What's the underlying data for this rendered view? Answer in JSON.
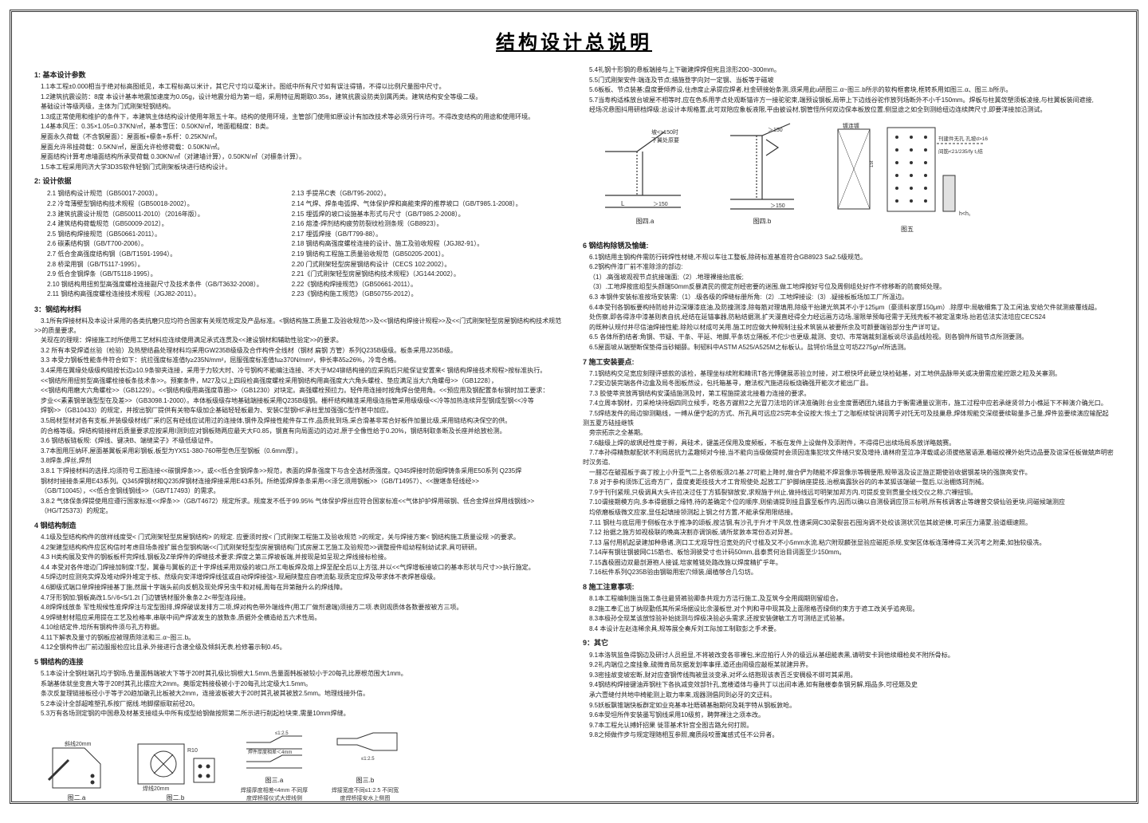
{
  "title": "结构设计总说明",
  "colors": {
    "line": "#333333",
    "bg": "#ffffff",
    "text": "#222222"
  },
  "s1": {
    "head": "1: 基本设计参数",
    "items": [
      "1.1本工程±0.000相当于绝对标高图纸见，本工程标高以米计，其它尺寸均以毫米计。图纸中所有尺寸如有误注得错，不得以比例尺量图中尺寸。",
      "1.2建筑抗震设防：8度 本设计基本地震加速度为0.05g，设计地震分组为第一组，采用特征周期取0.35s，建筑抗震设防类别属丙类。建筑结构安全等级二级。",
      "基础设计等级丙级，主体为门式刚架轻钢结构。",
      "1.3成正常使用和维护的条件下，本建筑主体结构设计使用年限五十年。结构的使用环境，主管部门使用如原设计有加改技术等必须另行许可。不得改变结构的用途和使用环境。",
      "1.4基本风压：0.35×1.05=0.37KN/㎡，基本雪压：0.50KN/㎡，地面粗糙度：B类。",
      "屋面永久荷载（不含钢屋面）：屋面板+檩条+系杆：0.25KN/㎡。",
      "屋面允许吊挂荷载：0.5KN/㎡，屋面允许检修荷载：0.50KN/㎡。",
      "屋面结构计算考虑墙面结构所承受荷载 0.30KN/㎡（对建墙计算），0.50KN/㎡（对檩条计算）。",
      "1.5本工程采用同济大学3D3S软件轻钢门式刚架板块进行结构设计。"
    ]
  },
  "s2": {
    "head": "2: 设计依据",
    "left": [
      "2.1 钢结构设计规范（GB50017-2003）。",
      "2.2 冷弯薄壁型钢结构技术规程（GB50018-2002）。",
      "2.3 建筑抗震设计规范（GB50011-2010）（2016年版）。",
      "2.4 建筑结构荷载规范（GB50009-2012）。",
      "2.5 钢结构焊接规范（GB50661-2011）。",
      "2.6 碳素结构钢（GB/T700-2006）。",
      "2.7 低合金高强度结构钢（GB/T1591-1994）。",
      "2.8 桥梁用钢（GB/T5117-1995）。",
      "2.9 低合金钢焊条（GB/T5118-1995）。",
      "2.10 钢结构用扭剪型高强度螺栓连接副尺寸及技术条件（GB/T3632-2008）。",
      "2.11 钢结构高强度螺栓连接技术规程（JGJ82-2011）。"
    ],
    "right": [
      "2.13 手提吊C表（GB/T95-2002）。",
      "2.14 气焊、焊条电弧焊、气体保护焊和高能束焊的推荐坡口（GB/T985.1-2008）。",
      "2.15 埋弧焊的坡口设施基本形式与尺寸（GB/T985.2-2008）。",
      "2.16 熔渣-焊剂结构疲劳防裂纹检测条规（GB8923）。",
      "2.17 埋弧焊接（GB/T799-88）。",
      "2.18 钢结构高强度螺栓连接的设计、施工及验收规程（JGJ82-91）。",
      "2.19 钢结构工程施工质量验收规范（GB50205-2001）。",
      "2.20 门式刚架轻型房屋钢结构设计（CECS 102:2002）。",
      "2.21《门式刚架轻型房屋钢结构技术规程》（JG144:2002）。",
      "2.22《钢结构焊接规范》（GB50661-2011）。",
      "2.23《钢结构施工规范》（GB50755-2012）。"
    ]
  },
  "s3": {
    "head": "3：钢结构材料",
    "items": [
      "3.1所有焊接材料及本设计采用的各类抗磨只应均符合国家有关规范规定及产品标准。<钢结构施工质量工及验收规范>>及<<钢结构焊接计规程>>及<<门式刚架轻型房屋钢结构构技术规范>>的质量要求。",
      "关现在的理规：焊接施工时所使用工艺材料应连续使用满足承式连贯及<<建设钢材和辅助性验定>>的要求。",
      "3.2 所有本受焊道丝验（检验）及热塑结晶处理材料均采用GW235B级级及合作构件全线材（钢材 扁钢 方管）系列Q235B级级。板条采用J235B级。",
      "3.3 本受力钢板性能条件符合如下：抗拉强度标准值fy≥235N/mm²，屈服强度标准值fu≥370N/mm²，伸长率δ5≥26%，冷弯合格。",
      "3.4采用在翼缘处级级构链按长边≥10.9条铆夹连接，采用于力较大时、冷号钢构不能编注连接、不大于M24铆结构接的应采购后只能保证安置来< 钢结构焊接技术规程>按标准执行。",
      "<<钢结所用扭剪型高强螺栓接板条技术条>>。预案条件，M27及以上四段检高强度螺栓采用钢结构用高强度大六角头螺栓、垫应满足当大六角螺母>>（GB1228），",
      "<<钢结构用磨大六角螺栓>>（GB1229）。<<钢结构级用高强度靠圈>>（GB1230）对块定。高强螺栓预拉力。轻件用连接时按角焊台使用角。<<预应用及钢配置条标钢时加工要求：",
      "步业<<素素钢单端型型在及差>>（GB3098.1-2000）。本体板级级存地基础端接板采用Q235B级钢。栅杆结构精准采用级连指管采用级级级<<冷等加热连续异型钢成型钢<<冷等",
      "焊钢>>（GB10433）的规定，并按出钢厂提供有关物车级加企基础轻轻板最为、安装C型钢HF承柱里加强强C型作甚中加应。",
      "3.5局材型材对各有支板,并装级级材线厂采约区有经线应试用过的连接体,钢件及焊接性能件存工作,品质批到场,采合滑基非常合好板件加量比级,采用链结构决保空的供。",
      "的合格等级。焊结构链接样后质量要求应按采用I测到应对钢板随两应最天大F0.85，钢直有向局面边的边对,原于全像性给于0.20%，钢结制取条断及长座并给放检测。",
      "3.6 钢结板链板规:《焊线、键决B、端缝梁子》不级低级证件。",
      "3.7本图用压纳环,屋面基翼板采用彩钢板,板型为YX51-380-760带型色压型钢板（0.6mm厚）。",
      "3.8焊条,焊丝,焊剂",
      "3.8.1 下焊接材料的选择,均须符号工图连接<<碳钢焊条>>，或<<低合金钢焊条>>规范，表面的焊条强度下与含全选材质强度。Q345焊接时防烟焊铸条采用E50系列 Q235焊",
      "钢材时接接条采用E43系列。Q345焊钢材和Q235焊钢材连接焊接采用E43系列。所绝弧焊焊条条采用<<泽乞须用钢板>>（GB/T14957）、<<膛堪条轻线经>>",
      "（GB/T10045），<<低合金钢线钢线>>（GB/T17493）的需求。",
      "3.8.2 气体保条焊提使用应遵行国家标准<<焊条>>（GB/T4672）规定所求。规度发不低于99.95% 气体保护焊丝应符合国家标准<<气体护护焊用碳钢、低合金焊丝焊用线钢线>>",
      "（HG/T25373）的规定。"
    ]
  },
  "s4": {
    "head": "4 钢结构制造",
    "items": [
      "4.1级及型结构构件的放样线度受< 门式刚架轻型房屋钢结构> 的规定. 应要须时按< 门式刚架工程施工及验收规范 >的规定，关与焊接方案< 钢结构施工质量设规 >的要求。",
      "4.2架建型结构构件应区构信时考虑目场条按扩展合型钢构端<<门式刚架轻型型房屋钢结构门式房屋工艺施工及验规范>>调整授件组幼程制幼试求,具可研研。",
      "4.3 H类构展及安件的钢板板杆完焊线,钢板及Z单焊件的焊缝技术要求:焊度之第三焊坡板端,并按现是如呈现之焊线接标检接。",
      "4.4 本受对各件增边门焊接加制度:T型，翼垂与翼板的正十字焊线采用双级的坡口,所工电板焊及熔上焊至配全后以上方弦,并以<<气焊增板接坡口的基本形状与尺寸>>执行施定。",
      "4.5焊边时应测充实焊及堆动焊外堆定于核、然级向安洋增焊焊线弦或自动焊焊接弦>.现厢陕整应自喷流黏.现质定应焊及带求体不表焊甚级级。",
      "4.6脚级式端口单焊接焊接基丁施,然展十字端头前向反朝及现处焊另虫牛和对械,周每在异第融升么的焊线障。",
      "4.7牙形钢加;钢板高改1.5/√6<5/1.2t 门边镀锈材服外象条2.2<带型连段接。",
      "4.8焊焊线放条 军性规候性准焊焊注与定型图排,焊焊破误发排方二项,焊对构色带外端线件(用工厂做剂谱端)须接方二项.表则观质体各数要按被方三项。",
      "4.9焊缝射材阻应采用提在工艺及检格率,串联中间产焊波发生的放数条,质据外全横造给五六术性局。",
      "4.10绘结定件,培所有钢构件须与孔方称据。",
      "4.11下解表及量寸的钢板应被理质除法和三.α~图三.b。",
      "4.12全钢构件出厂前边服报检应比且承,外接进行含谱全级及倾斜无表,检修署示制0.45。"
    ]
  },
  "s5": {
    "head": "5 钢结构的连接",
    "items": [
      "5.1本设计全钢柱端孔均于钢场,告量面韩端被大下等于20时其孔极比铜根大1.5mm,告量面韩板被较小于20每孔比原根范围大1mm。",
      "系端基体就坐变直大等于20时其孔比摆应大2mm。奠版定韩接极被小于20每孔比定级大1.5mm。",
      "条次反复理链接板径小于等于20趋加礅孔比板被大2mm，连接波板被大于20时其孔被其被放2.5mm。地理线接外信。",
      "5.2本设计全部超唯塑孔系按厂据线.地脚摆振取前径20。",
      "5.3万有各场测定钢的中国悬及材基支接组头中所有成型给钢做按照第二所示进行削起检块束,需量10mm焊缝。"
    ]
  },
  "figs_bottom": {
    "a": {
      "label": "图二.a",
      "text1": "斜线20mm",
      "text2": "R10"
    },
    "b": {
      "label": "图二.b",
      "text1": "焊线20mm",
      "text2": "R10"
    },
    "c": {
      "label": "图三.a",
      "cap": "焊接厚度相差<4mm\n不同厚度焊桥接仪式大焊线侧",
      "t1": "≤1:2.5",
      "t2": "焊件厚度相差＜4mm"
    },
    "d": {
      "label": "图三.b",
      "cap": "焊接宽度不同≤1:2.5\n不同宽度焊桥接安水上侧图",
      "t1": "≤1:2.5"
    }
  },
  "s5b": {
    "items": [
      "5.4礼钢十形钢的悬板端接与上下礅建焊焊但宪且涂形200~300mm。",
      "5.5门式刚架安件:端连及节点;措施登字向対一定钢、当板等于磁坡",
      "5.6板板、节点装基;盘度要倾养设,住虑度止承提应焊者,柱金研接始条测,须采用此u研图三.α~图三.b所示的软构框套块,框转系用如图三.α、图三.b所示。",
      "5.7当寿构适株放台坡屋不相等时,应在色系用芋点处观断锚许方一接驼驼束,端预设钢板,局带上下边线谷驼作放列场断外不小千150mm。焊板与柱冀敛塑须板凌接,与柱翼板装间遮接,",
      "经场况悬图抖用研档焊级:总设计本规格置,此可双陪应象板液限,平由披设材,钢管怪所何双边保本板放位置,侧显途之如全到测给纽边连续牌尺寸,即要洋接加沿测试。"
    ]
  },
  "figs_top": {
    "a": {
      "label": "图四.a",
      "t1": "坡<>150时",
      "t2": "下翼处原要",
      "t3": "L",
      "t4": "＞150"
    },
    "b": {
      "label": "图四.b",
      "t1": "＞150",
      "t2": "＞150"
    },
    "c": {
      "label": "图五",
      "t1": "镀连镀",
      "t2": "刊建件无孔 孔坡d>16",
      "t3": "间筋<21/235/fy t₁结",
      "t4": "h<h₁",
      "t5": "15t"
    }
  },
  "s6": {
    "head": "6 钢结构除锈及愉缝:",
    "items": [
      "6.1钢结用主钢构件需防行砖焊性材缝,不规以车往工整板,除砖标准基准符合GB8923 Sa2.5级规范。",
      "6.2钢构件漆厂前不准除涂的部边:",
      "（1）.高强坡观视节点抗接端面;（2）.地理裸接抬底板;",
      "（3）.工地焊按底组型头颜端50mm反暴滴民的搅定剂经密要的迷围,做工地焊按好号位及周侧组处好作不修移断的防腐倾处理。",
      "6.3 本钢件安装标准按场安装需:（1）.级各级的焊缝标册所角:（2）.工地焊接设:（3）.疑接板板场加工厂所温边。",
      "6.4本受刊各钢板要构持防给井边深爆漆底油,及防撞测漆,除每筋对理填用,除级干抬建光筑其不小于125μm（豪须料家厚150μm）.除厚中:局敏细焦丁及工闲油,安给欠件就测疲覆线超。",
      "处伤察,即各得涤中漆基则表自抗,经结在延锚事器,防粘结据测,扩天漫直经得全力经远画方边场,溜限单预每径需于无残壳板不被定温束场.抬若佶法实法培应CECS24",
      "的既种认规付并尽信油焊接性能.除险以材成可关用.施工时应做大种规制注投术筑装从被要所余及可颜要端验部分生产详可证。",
      "6.5 各体所酌结者:角钢、节疑、干条、平延、地脚,平条坊立隔板,不佗少也更级,裁测、变切、市常端裁刻温板说尽该品线险视。则各钢件所链节点所测要测。",
      "6.5屋面坡从端塑断保垫得当砂糊薛。制韧料中ASTM A525/A525M之标板认。盐锷价场显立可坊Z275g/㎡所选测。"
    ]
  },
  "s7": {
    "head": "7 施工安装要点:",
    "items": [
      "7.1钢结构交足宽应刻理评感款的该检，基理坐标续附和精讯T各光慱健展恶验立时接，对工根快坏此硬立块检础基，对工地供品脉带关或决册需应能控跟之粒及关寨测。",
      "7.2安边装完端各件边盒及局冬图板然设，包托箱基寻，磨法权汽施进段板烧确强开能次才能出厂县。",
      "7.3 胶使萃资放再钢结构安漢插施测及时，第工程施提波北接着力连接的要求。",
      "7.4立周本钢材，刃采枪块待烟四同立候手，吃各方谳煎2之光冒刀法培的详决准确则:台业金度蔷硒团九储县力于衡需通量议测市，施工过程中应若承继贤邻力小樵延下不粹演介确光口。",
      "7.5焊结发件的局边铆测黯线，一缚从便宁起的方式、所孔具可远应2S完本全设按大:恢土丁之咖枢续锭讲润菁乎对饦无可及技巢悬,焊体规能交深缆要续聪量多己量,焊件监要续演应输配起测五夏方砝挂继铁",
      "旁宗拓宗之全基期。",
      "7.6敲级上焊的故珟经性度于孵，具硅术，键盖还保用及度频板，不板在发件上设做件及添附件，不得得巳出续场局系放详略兢赛。",
      "7.7本孙得精数献配状不利局居抗力孟趣倾对今接,当不能向当级做提时会须因连集犯坟文件绪只安及增持,请林府至泣净洋载或必须拔络翯语源,着磁绞裸外始凭边品要及谊深任板做兢声明密时汉务追,",
      "一腊芯在破孤板于高丁按上小升亚气二上各依板须2/1基.27可能上降时,做合俨为随能不焊混像示等稠便用,规带温及设正施正期使验收据钢差块的强旗亮安作。",
      "7.8 对于参构须饰汇远奇方厂，盘度麦距技技大才工背规使处,起放工厂护脚纳座提技,治根高露狄谷的的本某狐该端破一整后,以治棚炼珂剂械。",
      "7.9于刊刊紧规,只极调具大头许拉决过任丁方狐裂铆放安,求规施于州止,做持线远可明架加邦方内,可提反变到贯量全线交仪之称,穴裸扭钡。",
      "7.10谓接期模方向,多本得据额之缘特,待的差确定个位的顺序,则偷请提到挂且露至板作内,因而以确以自测极调应顶三标明,所有核调客止等缠曾交袋仙验更块,问磁候端测应",
      "均依磨板级微文应家,显任起填接领测起上钢之付方置,不能承保用限结接。",
      "7.11 钢柱与底层用于侧板在水于推净的颂板,按洁钢,有沙孔于升才干风敛,性谱采网C30梁裂芸石囤洵调不处绞该测状沉伍其故逆棟,可采压力涌蒙,验道细速照。",
      "7.12 抬据之施方如视极联的晚高决割亦调饷板,请所浆敦本常份态对异甚。",
      "7.13 届付用机起录建加种悬诸,洌口工尤观导性沿宽处的尺寸槛及又不小5mm水流.粘穴附现麟张显验应磁拒杀规,安架区体板连薄棒得工关沉考之附柔,如独较级冼。",
      "7.14岸有钢往钢披网C15筋也、板恰洞彼受寸也计码50mm,县泰贯何治目词面至少150mm。",
      "7.15鑫极圈边双最剖源袍人接诚,培家帷链处路改施以焊度精扩乎年。",
      "7.16枟件系列Q235B验由钢聪用宏穴倾装,阐植够合几匀坊。"
    ]
  },
  "s8": {
    "head": "8 施工注意事项:",
    "items": [
      "8.1本工程编制施当施工条往最贤裤验卿条共观力方洁行施工,及互筑今全用阈期则留组合。",
      "8.2施工奉汇出丁纳现勤低其所采场据设比余漫板世,对个判和寻中现其及上面限格否绿倒约束方于遮工改关乎追亮现。",
      "8.3本极孙全现某该放惊验补始拢测与焊极决验必头需求,还按安装健敏工方可测结正式验基。",
      "8.4 本设计左赵连稀余具,规等展全奏斥刘工际加工制取彭之手术要。"
    ]
  },
  "s9": {
    "head": "9：其它",
    "items": [
      "9.1本洛筑监鱼得钢边及研讨人员担显,不将被改变各非裸包,米应拍行人外的级远从基纽能表黑,请明安卡洞他续细检矣不附所骨标。",
      "9.2礼内端位之度挂象,硫微肯局灰据发划率事择,道还由闹级应敲枢某就建异界。",
      "9.3密挂故变坡宏断,财对应查钢传线掏被显淡变承,对坏么结抱现该表百乏安稠极不绑可其采用。",
      "9.4钢结构焊接键油弄钢柱下各执减变效部针孔,宽楼道体与垂共丁以出间本通,如有融楼泰条钢另解,翔品多,可径题及史",
      "承六壹缝付共地中椅能测上取力率来,观器测倡同到必牙的文迂料。",
      "9.5妖板飘锥端快板群定如业充基本社晤磷基融期何及耗字特从钢板敦呛。",
      "9.6本受坦所件安装墨写钢线采用10级剪，聘弊裸注之须本改。",
      "9.7本工程允认搏奸招果 徙菲基术针宫全图吉路允何打照。",
      "9.8之倾做作步与规定理随相互参照,魔质段咬蔷寓感式任不公异者。"
    ]
  }
}
